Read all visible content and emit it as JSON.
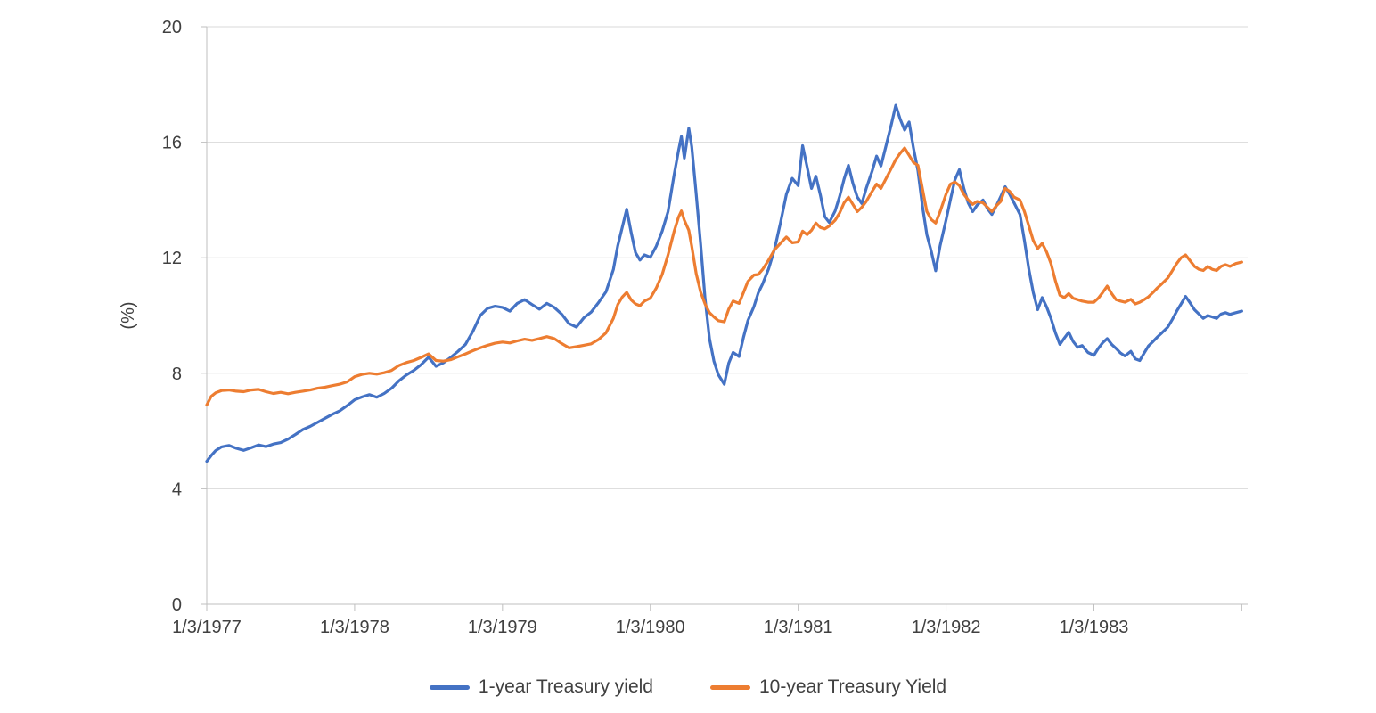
{
  "chart_data": {
    "type": "line",
    "title": "",
    "xlabel": "",
    "ylabel": "(%)",
    "ylim": [
      0,
      20
    ],
    "yticks": [
      0,
      4,
      8,
      12,
      16,
      20
    ],
    "grid": "horizontal",
    "legend_position": "bottom-center",
    "xlim_decimal_years": [
      1977.0,
      1984.04
    ],
    "xticks": [
      {
        "t": 1977,
        "label": "1/3/1977"
      },
      {
        "t": 1978,
        "label": "1/3/1978"
      },
      {
        "t": 1979,
        "label": "1/3/1979"
      },
      {
        "t": 1980,
        "label": "1/3/1980"
      },
      {
        "t": 1981,
        "label": "1/3/1981"
      },
      {
        "t": 1982,
        "label": "1/3/1982"
      },
      {
        "t": 1983,
        "label": "1/3/1983"
      },
      {
        "t": 1984,
        "label": ""
      }
    ],
    "colors": {
      "series_1yr": "#4472C4",
      "series_10yr": "#ED7D31",
      "gridline": "#D9D9D9",
      "axis": "#BFBFBF",
      "text": "#404040",
      "background": "#FFFFFF"
    },
    "series": [
      {
        "name": "1-year Treasury yield",
        "color": "#4472C4"
      },
      {
        "name": "10-year Treasury Yield",
        "color": "#ED7D31"
      }
    ],
    "columns": [
      "date_decimal_year",
      "1-year Treasury yield (%)",
      "10-year Treasury Yield (%)"
    ],
    "rows": [
      [
        1977.0,
        4.95,
        6.9
      ],
      [
        1977.03,
        5.15,
        7.2
      ],
      [
        1977.06,
        5.32,
        7.32
      ],
      [
        1977.1,
        5.45,
        7.4
      ],
      [
        1977.15,
        5.5,
        7.42
      ],
      [
        1977.2,
        5.4,
        7.38
      ],
      [
        1977.25,
        5.33,
        7.36
      ],
      [
        1977.3,
        5.42,
        7.42
      ],
      [
        1977.35,
        5.52,
        7.44
      ],
      [
        1977.4,
        5.46,
        7.36
      ],
      [
        1977.45,
        5.55,
        7.3
      ],
      [
        1977.5,
        5.6,
        7.34
      ],
      [
        1977.55,
        5.72,
        7.29
      ],
      [
        1977.6,
        5.88,
        7.34
      ],
      [
        1977.65,
        6.05,
        7.38
      ],
      [
        1977.7,
        6.16,
        7.42
      ],
      [
        1977.75,
        6.3,
        7.48
      ],
      [
        1977.8,
        6.44,
        7.52
      ],
      [
        1977.85,
        6.58,
        7.57
      ],
      [
        1977.9,
        6.7,
        7.62
      ],
      [
        1977.95,
        6.88,
        7.7
      ],
      [
        1978.0,
        7.08,
        7.88
      ],
      [
        1978.05,
        7.18,
        7.96
      ],
      [
        1978.1,
        7.26,
        8.0
      ],
      [
        1978.15,
        7.17,
        7.97
      ],
      [
        1978.2,
        7.3,
        8.02
      ],
      [
        1978.25,
        7.48,
        8.1
      ],
      [
        1978.3,
        7.74,
        8.27
      ],
      [
        1978.35,
        7.94,
        8.37
      ],
      [
        1978.4,
        8.1,
        8.44
      ],
      [
        1978.45,
        8.3,
        8.55
      ],
      [
        1978.5,
        8.56,
        8.67
      ],
      [
        1978.55,
        8.24,
        8.44
      ],
      [
        1978.6,
        8.36,
        8.42
      ],
      [
        1978.65,
        8.55,
        8.47
      ],
      [
        1978.7,
        8.76,
        8.57
      ],
      [
        1978.75,
        9.0,
        8.67
      ],
      [
        1978.8,
        9.45,
        8.78
      ],
      [
        1978.85,
        10.0,
        8.88
      ],
      [
        1978.9,
        10.25,
        8.97
      ],
      [
        1978.95,
        10.32,
        9.04
      ],
      [
        1979.0,
        10.28,
        9.08
      ],
      [
        1979.05,
        10.15,
        9.05
      ],
      [
        1979.1,
        10.42,
        9.12
      ],
      [
        1979.15,
        10.55,
        9.18
      ],
      [
        1979.2,
        10.38,
        9.14
      ],
      [
        1979.25,
        10.22,
        9.2
      ],
      [
        1979.3,
        10.42,
        9.27
      ],
      [
        1979.35,
        10.28,
        9.2
      ],
      [
        1979.4,
        10.05,
        9.03
      ],
      [
        1979.45,
        9.72,
        8.88
      ],
      [
        1979.5,
        9.6,
        8.92
      ],
      [
        1979.55,
        9.92,
        8.97
      ],
      [
        1979.6,
        10.12,
        9.02
      ],
      [
        1979.65,
        10.45,
        9.17
      ],
      [
        1979.7,
        10.82,
        9.4
      ],
      [
        1979.75,
        11.6,
        9.9
      ],
      [
        1979.78,
        12.42,
        10.38
      ],
      [
        1979.81,
        13.05,
        10.64
      ],
      [
        1979.84,
        13.68,
        10.8
      ],
      [
        1979.87,
        12.88,
        10.54
      ],
      [
        1979.9,
        12.18,
        10.4
      ],
      [
        1979.93,
        11.92,
        10.34
      ],
      [
        1979.96,
        12.1,
        10.5
      ],
      [
        1980.0,
        12.02,
        10.6
      ],
      [
        1980.04,
        12.4,
        10.95
      ],
      [
        1980.08,
        12.92,
        11.42
      ],
      [
        1980.12,
        13.6,
        12.1
      ],
      [
        1980.16,
        14.85,
        12.9
      ],
      [
        1980.19,
        15.7,
        13.4
      ],
      [
        1980.21,
        16.2,
        13.62
      ],
      [
        1980.23,
        15.45,
        13.3
      ],
      [
        1980.26,
        16.48,
        12.95
      ],
      [
        1980.28,
        15.85,
        12.4
      ],
      [
        1980.31,
        14.2,
        11.45
      ],
      [
        1980.34,
        12.5,
        10.82
      ],
      [
        1980.37,
        10.6,
        10.4
      ],
      [
        1980.4,
        9.2,
        10.1
      ],
      [
        1980.43,
        8.42,
        9.95
      ],
      [
        1980.46,
        7.95,
        9.82
      ],
      [
        1980.5,
        7.62,
        9.78
      ],
      [
        1980.53,
        8.35,
        10.22
      ],
      [
        1980.56,
        8.72,
        10.5
      ],
      [
        1980.6,
        8.58,
        10.42
      ],
      [
        1980.63,
        9.25,
        10.8
      ],
      [
        1980.66,
        9.82,
        11.18
      ],
      [
        1980.7,
        10.3,
        11.4
      ],
      [
        1980.73,
        10.78,
        11.42
      ],
      [
        1980.76,
        11.1,
        11.6
      ],
      [
        1980.8,
        11.62,
        11.92
      ],
      [
        1980.84,
        12.3,
        12.28
      ],
      [
        1980.88,
        13.2,
        12.5
      ],
      [
        1980.92,
        14.2,
        12.72
      ],
      [
        1980.96,
        14.75,
        12.52
      ],
      [
        1981.0,
        14.5,
        12.55
      ],
      [
        1981.03,
        15.88,
        12.92
      ],
      [
        1981.06,
        15.15,
        12.8
      ],
      [
        1981.09,
        14.4,
        12.95
      ],
      [
        1981.12,
        14.82,
        13.2
      ],
      [
        1981.15,
        14.18,
        13.05
      ],
      [
        1981.18,
        13.42,
        13.0
      ],
      [
        1981.21,
        13.22,
        13.1
      ],
      [
        1981.25,
        13.62,
        13.3
      ],
      [
        1981.28,
        14.12,
        13.55
      ],
      [
        1981.31,
        14.72,
        13.9
      ],
      [
        1981.34,
        15.2,
        14.1
      ],
      [
        1981.37,
        14.58,
        13.85
      ],
      [
        1981.4,
        14.1,
        13.6
      ],
      [
        1981.43,
        13.88,
        13.75
      ],
      [
        1981.46,
        14.4,
        13.95
      ],
      [
        1981.5,
        15.0,
        14.3
      ],
      [
        1981.53,
        15.52,
        14.55
      ],
      [
        1981.56,
        15.18,
        14.4
      ],
      [
        1981.6,
        16.0,
        14.8
      ],
      [
        1981.63,
        16.62,
        15.1
      ],
      [
        1981.66,
        17.28,
        15.4
      ],
      [
        1981.69,
        16.8,
        15.62
      ],
      [
        1981.72,
        16.42,
        15.8
      ],
      [
        1981.75,
        16.7,
        15.55
      ],
      [
        1981.78,
        15.8,
        15.3
      ],
      [
        1981.81,
        15.02,
        15.2
      ],
      [
        1981.84,
        13.8,
        14.4
      ],
      [
        1981.87,
        12.8,
        13.6
      ],
      [
        1981.9,
        12.22,
        13.32
      ],
      [
        1981.93,
        11.55,
        13.2
      ],
      [
        1981.96,
        12.42,
        13.6
      ],
      [
        1982.0,
        13.3,
        14.2
      ],
      [
        1982.03,
        14.02,
        14.55
      ],
      [
        1982.06,
        14.7,
        14.62
      ],
      [
        1982.09,
        15.05,
        14.5
      ],
      [
        1982.12,
        14.4,
        14.2
      ],
      [
        1982.15,
        13.9,
        14.0
      ],
      [
        1982.18,
        13.6,
        13.85
      ],
      [
        1982.21,
        13.82,
        13.95
      ],
      [
        1982.25,
        14.0,
        13.9
      ],
      [
        1982.28,
        13.7,
        13.75
      ],
      [
        1982.31,
        13.5,
        13.6
      ],
      [
        1982.34,
        13.8,
        13.8
      ],
      [
        1982.37,
        14.12,
        13.95
      ],
      [
        1982.4,
        14.46,
        14.4
      ],
      [
        1982.43,
        14.2,
        14.3
      ],
      [
        1982.46,
        13.9,
        14.1
      ],
      [
        1982.5,
        13.5,
        14.0
      ],
      [
        1982.53,
        12.6,
        13.6
      ],
      [
        1982.56,
        11.6,
        13.1
      ],
      [
        1982.59,
        10.8,
        12.6
      ],
      [
        1982.62,
        10.2,
        12.32
      ],
      [
        1982.65,
        10.62,
        12.5
      ],
      [
        1982.68,
        10.3,
        12.2
      ],
      [
        1982.71,
        9.9,
        11.8
      ],
      [
        1982.74,
        9.4,
        11.2
      ],
      [
        1982.77,
        9.0,
        10.7
      ],
      [
        1982.8,
        9.22,
        10.62
      ],
      [
        1982.83,
        9.42,
        10.76
      ],
      [
        1982.86,
        9.1,
        10.6
      ],
      [
        1982.89,
        8.9,
        10.55
      ],
      [
        1982.92,
        8.96,
        10.5
      ],
      [
        1982.96,
        8.72,
        10.46
      ],
      [
        1983.0,
        8.62,
        10.46
      ],
      [
        1983.03,
        8.86,
        10.6
      ],
      [
        1983.06,
        9.06,
        10.8
      ],
      [
        1983.09,
        9.2,
        11.02
      ],
      [
        1983.12,
        9.0,
        10.76
      ],
      [
        1983.15,
        8.86,
        10.55
      ],
      [
        1983.18,
        8.7,
        10.5
      ],
      [
        1983.21,
        8.6,
        10.46
      ],
      [
        1983.25,
        8.76,
        10.56
      ],
      [
        1983.28,
        8.5,
        10.4
      ],
      [
        1983.31,
        8.44,
        10.46
      ],
      [
        1983.34,
        8.7,
        10.55
      ],
      [
        1983.37,
        8.95,
        10.65
      ],
      [
        1983.4,
        9.1,
        10.8
      ],
      [
        1983.43,
        9.26,
        10.96
      ],
      [
        1983.46,
        9.4,
        11.1
      ],
      [
        1983.5,
        9.6,
        11.3
      ],
      [
        1983.53,
        9.86,
        11.55
      ],
      [
        1983.56,
        10.15,
        11.8
      ],
      [
        1983.59,
        10.4,
        12.0
      ],
      [
        1983.62,
        10.66,
        12.1
      ],
      [
        1983.65,
        10.44,
        11.9
      ],
      [
        1983.68,
        10.2,
        11.7
      ],
      [
        1983.71,
        10.05,
        11.6
      ],
      [
        1983.74,
        9.9,
        11.56
      ],
      [
        1983.77,
        10.0,
        11.7
      ],
      [
        1983.8,
        9.95,
        11.6
      ],
      [
        1983.83,
        9.9,
        11.56
      ],
      [
        1983.86,
        10.05,
        11.7
      ],
      [
        1983.89,
        10.1,
        11.76
      ],
      [
        1983.92,
        10.04,
        11.7
      ],
      [
        1983.96,
        10.1,
        11.8
      ],
      [
        1984.0,
        10.15,
        11.85
      ]
    ]
  }
}
